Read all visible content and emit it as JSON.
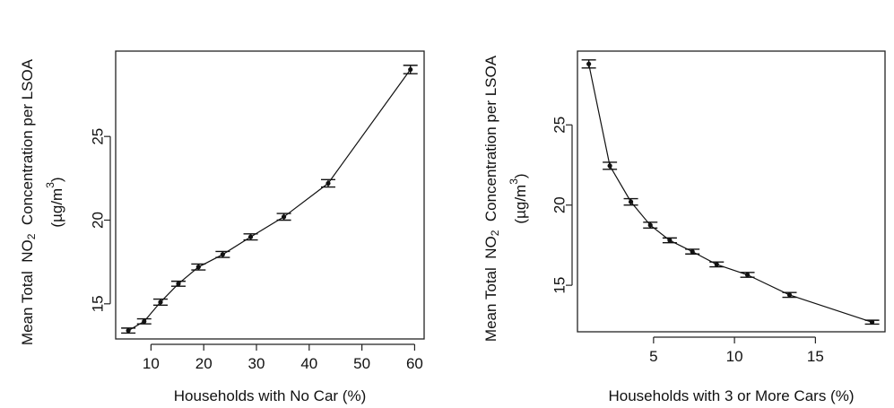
{
  "chart_data": [
    {
      "type": "line",
      "error_bars": true,
      "xlabel": "Households with No Car (%)",
      "ylabel": {
        "line1_prefix": "Mean Total  NO",
        "line1_sub": "2",
        "line1_suffix": "  Concentration per LSOA",
        "line2_prefix": "(µg/m",
        "line2_sup": "3",
        "line2_suffix": ")"
      },
      "xticks": [
        10,
        20,
        30,
        40,
        50,
        60
      ],
      "yticks": [
        15,
        20,
        25
      ],
      "xlim": [
        3.3,
        61.8
      ],
      "ylim": [
        12.9,
        30.1
      ],
      "series": [
        {
          "points": [
            {
              "x": 5.7,
              "y": 13.4,
              "err": 0.15
            },
            {
              "x": 8.7,
              "y": 13.95,
              "err": 0.15
            },
            {
              "x": 11.8,
              "y": 15.1,
              "err": 0.18
            },
            {
              "x": 15.2,
              "y": 16.2,
              "err": 0.15
            },
            {
              "x": 19.0,
              "y": 17.2,
              "err": 0.18
            },
            {
              "x": 23.6,
              "y": 17.95,
              "err": 0.18
            },
            {
              "x": 28.9,
              "y": 19.0,
              "err": 0.18
            },
            {
              "x": 35.2,
              "y": 20.2,
              "err": 0.2
            },
            {
              "x": 43.6,
              "y": 22.2,
              "err": 0.22
            },
            {
              "x": 59.2,
              "y": 29.0,
              "err": 0.25
            }
          ]
        }
      ]
    },
    {
      "type": "line",
      "error_bars": true,
      "xlabel": "Households with 3 or More Cars (%)",
      "ylabel": {
        "line1_prefix": "Mean Total  NO",
        "line1_sub": "2",
        "line1_suffix": "  Concentration per LSOA",
        "line2_prefix": "(µg/m",
        "line2_sup": "3",
        "line2_suffix": ")"
      },
      "xticks": [
        5,
        10,
        15
      ],
      "yticks": [
        15,
        20,
        25
      ],
      "xlim": [
        0.3,
        19.3
      ],
      "ylim": [
        12.1,
        29.6
      ],
      "series": [
        {
          "points": [
            {
              "x": 1.0,
              "y": 28.8,
              "err": 0.25
            },
            {
              "x": 2.3,
              "y": 22.45,
              "err": 0.22
            },
            {
              "x": 3.6,
              "y": 20.2,
              "err": 0.2
            },
            {
              "x": 4.8,
              "y": 18.75,
              "err": 0.18
            },
            {
              "x": 6.0,
              "y": 17.8,
              "err": 0.15
            },
            {
              "x": 7.4,
              "y": 17.1,
              "err": 0.15
            },
            {
              "x": 8.9,
              "y": 16.3,
              "err": 0.15
            },
            {
              "x": 10.8,
              "y": 15.65,
              "err": 0.15
            },
            {
              "x": 13.4,
              "y": 14.4,
              "err": 0.15
            },
            {
              "x": 18.5,
              "y": 12.7,
              "err": 0.12
            }
          ]
        }
      ]
    }
  ]
}
